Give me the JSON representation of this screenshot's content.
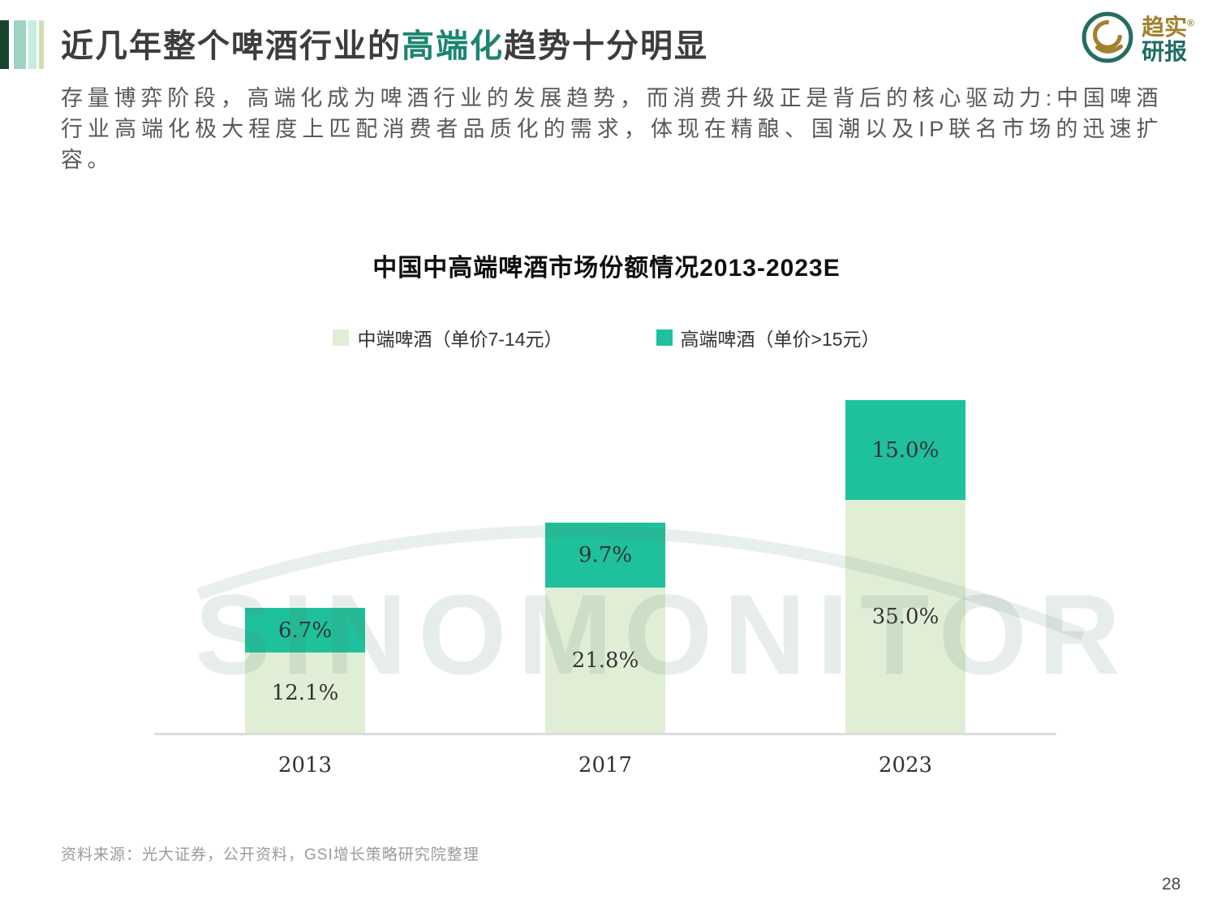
{
  "header": {
    "title_prefix": "近几年整个啤酒行业的",
    "title_highlight": "高端化",
    "title_suffix": "趋势十分明显",
    "highlight_color": "#1b8570",
    "logo": {
      "icon": "q-ring-logo",
      "brand_line1": "趋实",
      "brand_reg": "®",
      "brand_line2": "研报",
      "ring_color": "#256e60",
      "gold_color": "#a1812e"
    }
  },
  "intro": {
    "text": "存量博弈阶段，高端化成为啤酒行业的发展趋势，而消费升级正是背后的核心驱动力:中国啤酒行业高端化极大程度上匹配消费者品质化的需求，体现在精酿、国潮以及IP联名市场的迅速扩容。"
  },
  "chart_data": {
    "type": "bar",
    "stacked": true,
    "title": "中国中高端啤酒市场份额情况2013-2023E",
    "categories": [
      "2013",
      "2017",
      "2023"
    ],
    "series": [
      {
        "name": "中端啤酒（单价7-14元）",
        "color": "#e0eed6",
        "values": [
          12.1,
          21.8,
          35.0
        ],
        "labels": [
          "12.1%",
          "21.8%",
          "35.0%"
        ]
      },
      {
        "name": "高端啤酒（单价>15元）",
        "color": "#1fc09c",
        "values": [
          6.7,
          9.7,
          15.0
        ],
        "labels": [
          "6.7%",
          "9.7%",
          "15.0%"
        ]
      }
    ],
    "unit": "%",
    "ylim": [
      0,
      55
    ],
    "legend_position": "top",
    "grid": false,
    "axis_color": "#dcdcdc"
  },
  "watermark": {
    "text": "SINOMONITOR"
  },
  "footer": {
    "source": "资料来源：光大证券，公开资料，GSI增长策略研究院整理",
    "page_number": "28"
  }
}
